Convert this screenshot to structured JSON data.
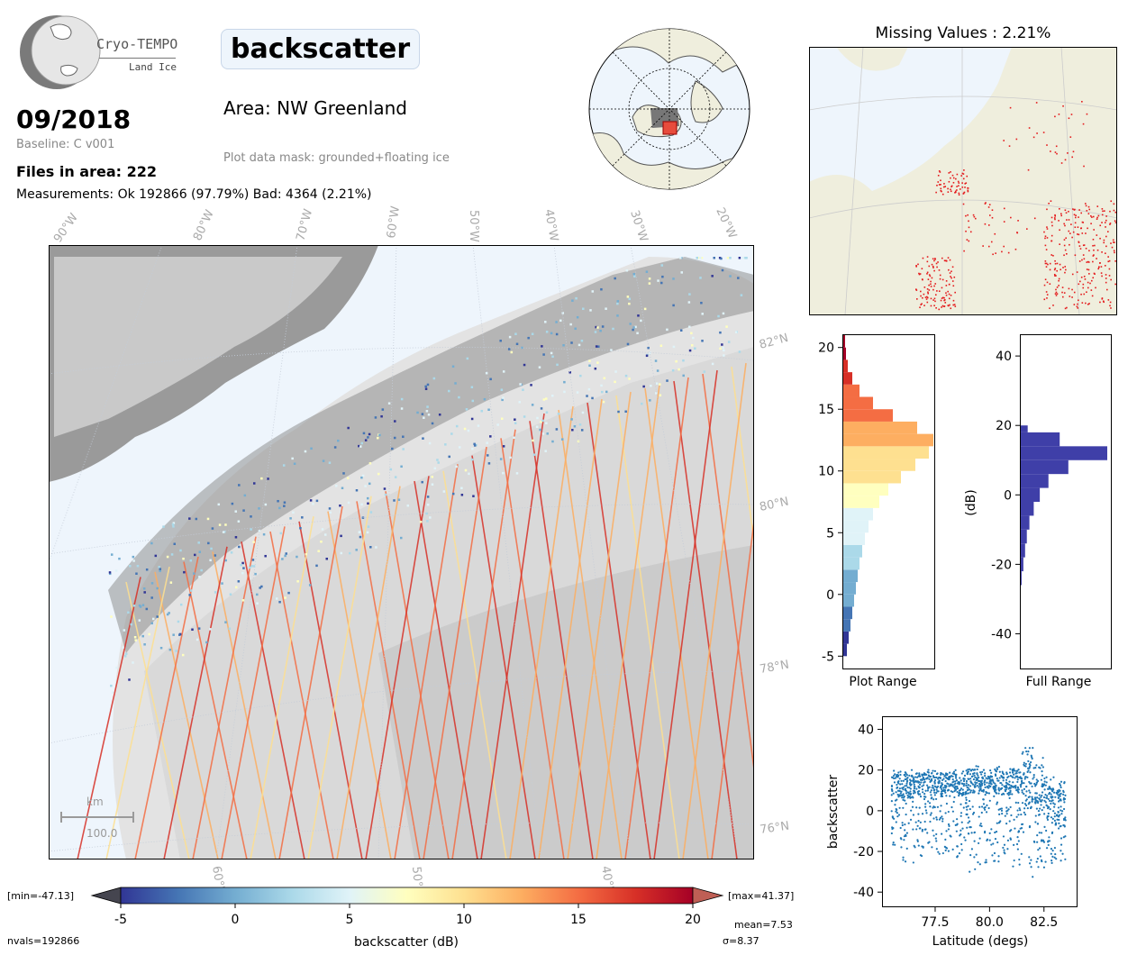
{
  "logo": {
    "name": "Cryo-TEMPO",
    "sub": "Land Ice"
  },
  "header": {
    "date": "09/2018",
    "baseline": "Baseline: C v001",
    "files": "Files in area: 222",
    "measurements": "Measurements: Ok 192866 (97.79%) Bad: 4364 (2.21%)",
    "parameter": "backscatter",
    "area": "Area: NW Greenland",
    "mask": "Plot data mask: grounded+floating ice"
  },
  "map": {
    "lon_labels": [
      "90°W",
      "80°W",
      "70°W",
      "60°W",
      "50°W",
      "40°W",
      "30°W",
      "20°W"
    ],
    "lat_labels": [
      "82°N",
      "80°N",
      "78°N",
      "76°N"
    ],
    "bottom_lon_labels": [
      "60°W",
      "50°W",
      "40°W"
    ],
    "scale_unit": "km",
    "scale_value": "100.0"
  },
  "missing": {
    "title": "Missing Values : 2.21%"
  },
  "colorbar": {
    "label": "backscatter (dB)",
    "min_label": "[min=-47.13]",
    "max_label": "[max=41.37]",
    "nvals": "nvals=192866",
    "mean": "mean=7.53",
    "sigma": "σ=8.37",
    "ticks": [
      "-5",
      "0",
      "5",
      "10",
      "15",
      "20"
    ]
  },
  "colors": {
    "ocean": "#eef5fc",
    "land": "#efeedd",
    "cmap": [
      "#313695",
      "#4575b4",
      "#74add1",
      "#abd9e9",
      "#e0f3f8",
      "#ffffbf",
      "#fee090",
      "#fdae61",
      "#f46d43",
      "#d73027",
      "#a50026"
    ],
    "scatter": "#1f77b4",
    "hist_full": "#3f3fa8",
    "missing_points": "#e41a1c"
  },
  "chart_data": [
    {
      "type": "bar",
      "title": "",
      "xlabel": "Plot Range",
      "ylabel": "",
      "ylim": [
        -6,
        21
      ],
      "yticks": [
        "20",
        "15",
        "10",
        "5",
        "0",
        "-5"
      ],
      "orientation": "horizontal-histogram",
      "bins": [
        -5,
        -4,
        -3,
        -2,
        -1,
        0,
        1,
        2,
        3,
        4,
        5,
        6,
        7,
        8,
        9,
        10,
        11,
        12,
        13,
        14,
        15,
        16,
        17,
        18,
        19,
        20
      ],
      "values": [
        0.04,
        0.06,
        0.08,
        0.1,
        0.12,
        0.14,
        0.16,
        0.18,
        0.21,
        0.24,
        0.28,
        0.33,
        0.4,
        0.5,
        0.64,
        0.8,
        0.95,
        1.0,
        0.82,
        0.55,
        0.33,
        0.18,
        0.1,
        0.05,
        0.03,
        0.02
      ]
    },
    {
      "type": "bar",
      "title": "",
      "xlabel": "Full Range",
      "ylabel": "(dB)",
      "ylim": [
        -50,
        46
      ],
      "yticks": [
        "40",
        "20",
        "0",
        "-20",
        "-40"
      ],
      "orientation": "horizontal-histogram",
      "bins": [
        -26,
        -22,
        -18,
        -14,
        -10,
        -6,
        -2,
        2,
        6,
        10,
        14,
        18,
        20
      ],
      "values": [
        0.01,
        0.03,
        0.05,
        0.07,
        0.1,
        0.15,
        0.22,
        0.32,
        0.55,
        1.0,
        0.45,
        0.08,
        0.03
      ]
    },
    {
      "type": "scatter",
      "title": "",
      "xlabel": "Latitude (degs)",
      "ylabel": "backscatter",
      "xlim": [
        75.1,
        84.0
      ],
      "ylim": [
        -47,
        46
      ],
      "xticks": [
        "77.5",
        "80.0",
        "82.5"
      ],
      "yticks": [
        "40",
        "20",
        "0",
        "-20",
        "-40"
      ],
      "series": [
        {
          "x": [
            75.5,
            76.0,
            76.5,
            77.0,
            77.5,
            78.0,
            78.5,
            79.0,
            79.5,
            80.0,
            80.5,
            81.0,
            81.5,
            82.0,
            82.5,
            83.0,
            83.5
          ],
          "y_high": [
            20,
            21,
            20,
            22,
            21,
            20,
            21,
            22,
            21,
            22,
            21,
            22,
            35,
            26,
            20,
            18,
            15
          ],
          "y_median": [
            10,
            10,
            11,
            10,
            11,
            12,
            11,
            12,
            11,
            12,
            11,
            12,
            10,
            5,
            2,
            -2,
            -3
          ],
          "y_low": [
            -20,
            -25,
            -27,
            -20,
            -22,
            -20,
            -25,
            -30,
            -27,
            -25,
            -22,
            -30,
            -35,
            -28,
            -30,
            -25,
            -32
          ]
        }
      ]
    }
  ]
}
